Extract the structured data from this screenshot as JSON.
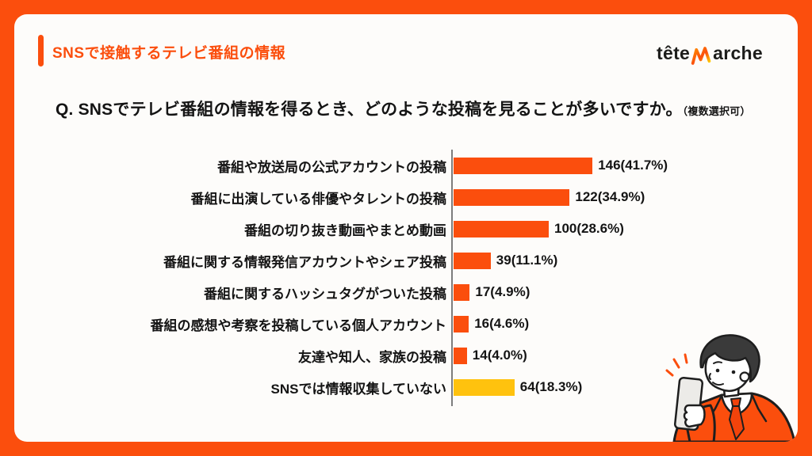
{
  "frame": {
    "background_color": "#fb4e0d",
    "card_background_color": "#fdfcfa"
  },
  "header": {
    "title": "SNSで接触するテレビ番組の情報",
    "accent_color": "#fb4e0d",
    "logo": {
      "text_before": "tête",
      "text_after": "arche",
      "mark": "m-crown-mark",
      "mark_colors": [
        "#ff9000",
        "#fb4e0d",
        "#ffd400"
      ]
    }
  },
  "question": {
    "text": "Q. SNSでテレビ番組の情報を得るとき、どのような投稿を見ることが多いですか。",
    "note": "（複数選択可）"
  },
  "chart_data": {
    "type": "bar",
    "orientation": "horizontal",
    "title": "SNSで接触するテレビ番組の情報",
    "categories": [
      "番組や放送局の公式アカウントの投稿",
      "番組に出演している俳優やタレントの投稿",
      "番組の切り抜き動画やまとめ動画",
      "番組に関する情報発信アカウントやシェア投稿",
      "番組に関するハッシュタグがついた投稿",
      "番組の感想や考察を投稿している個人アカウント",
      "友達や知人、家族の投稿",
      "SNSでは情報収集していない"
    ],
    "values": [
      146,
      122,
      100,
      39,
      17,
      16,
      14,
      64
    ],
    "percent_labels": [
      "41.7",
      "34.9",
      "28.6",
      "11.1",
      "4.9",
      "4.6",
      "4.0",
      "18.3"
    ],
    "value_label_format": "{value}({pct}%)",
    "bar_colors": [
      "#fb4e0d",
      "#fb4e0d",
      "#fb4e0d",
      "#fb4e0d",
      "#fb4e0d",
      "#fb4e0d",
      "#fb4e0d",
      "#ffc20e"
    ],
    "xlim": [
      0,
      165
    ],
    "axis_line_color": "#7d7d7d",
    "grid": false,
    "legend": false
  },
  "illustration": {
    "description": "businessman in orange suit looking at a smartphone",
    "suit_color": "#fb4e0d",
    "tie_color": "#f2430b",
    "hair_color": "#3a3a3a",
    "phone_color": "#ecebe8"
  }
}
